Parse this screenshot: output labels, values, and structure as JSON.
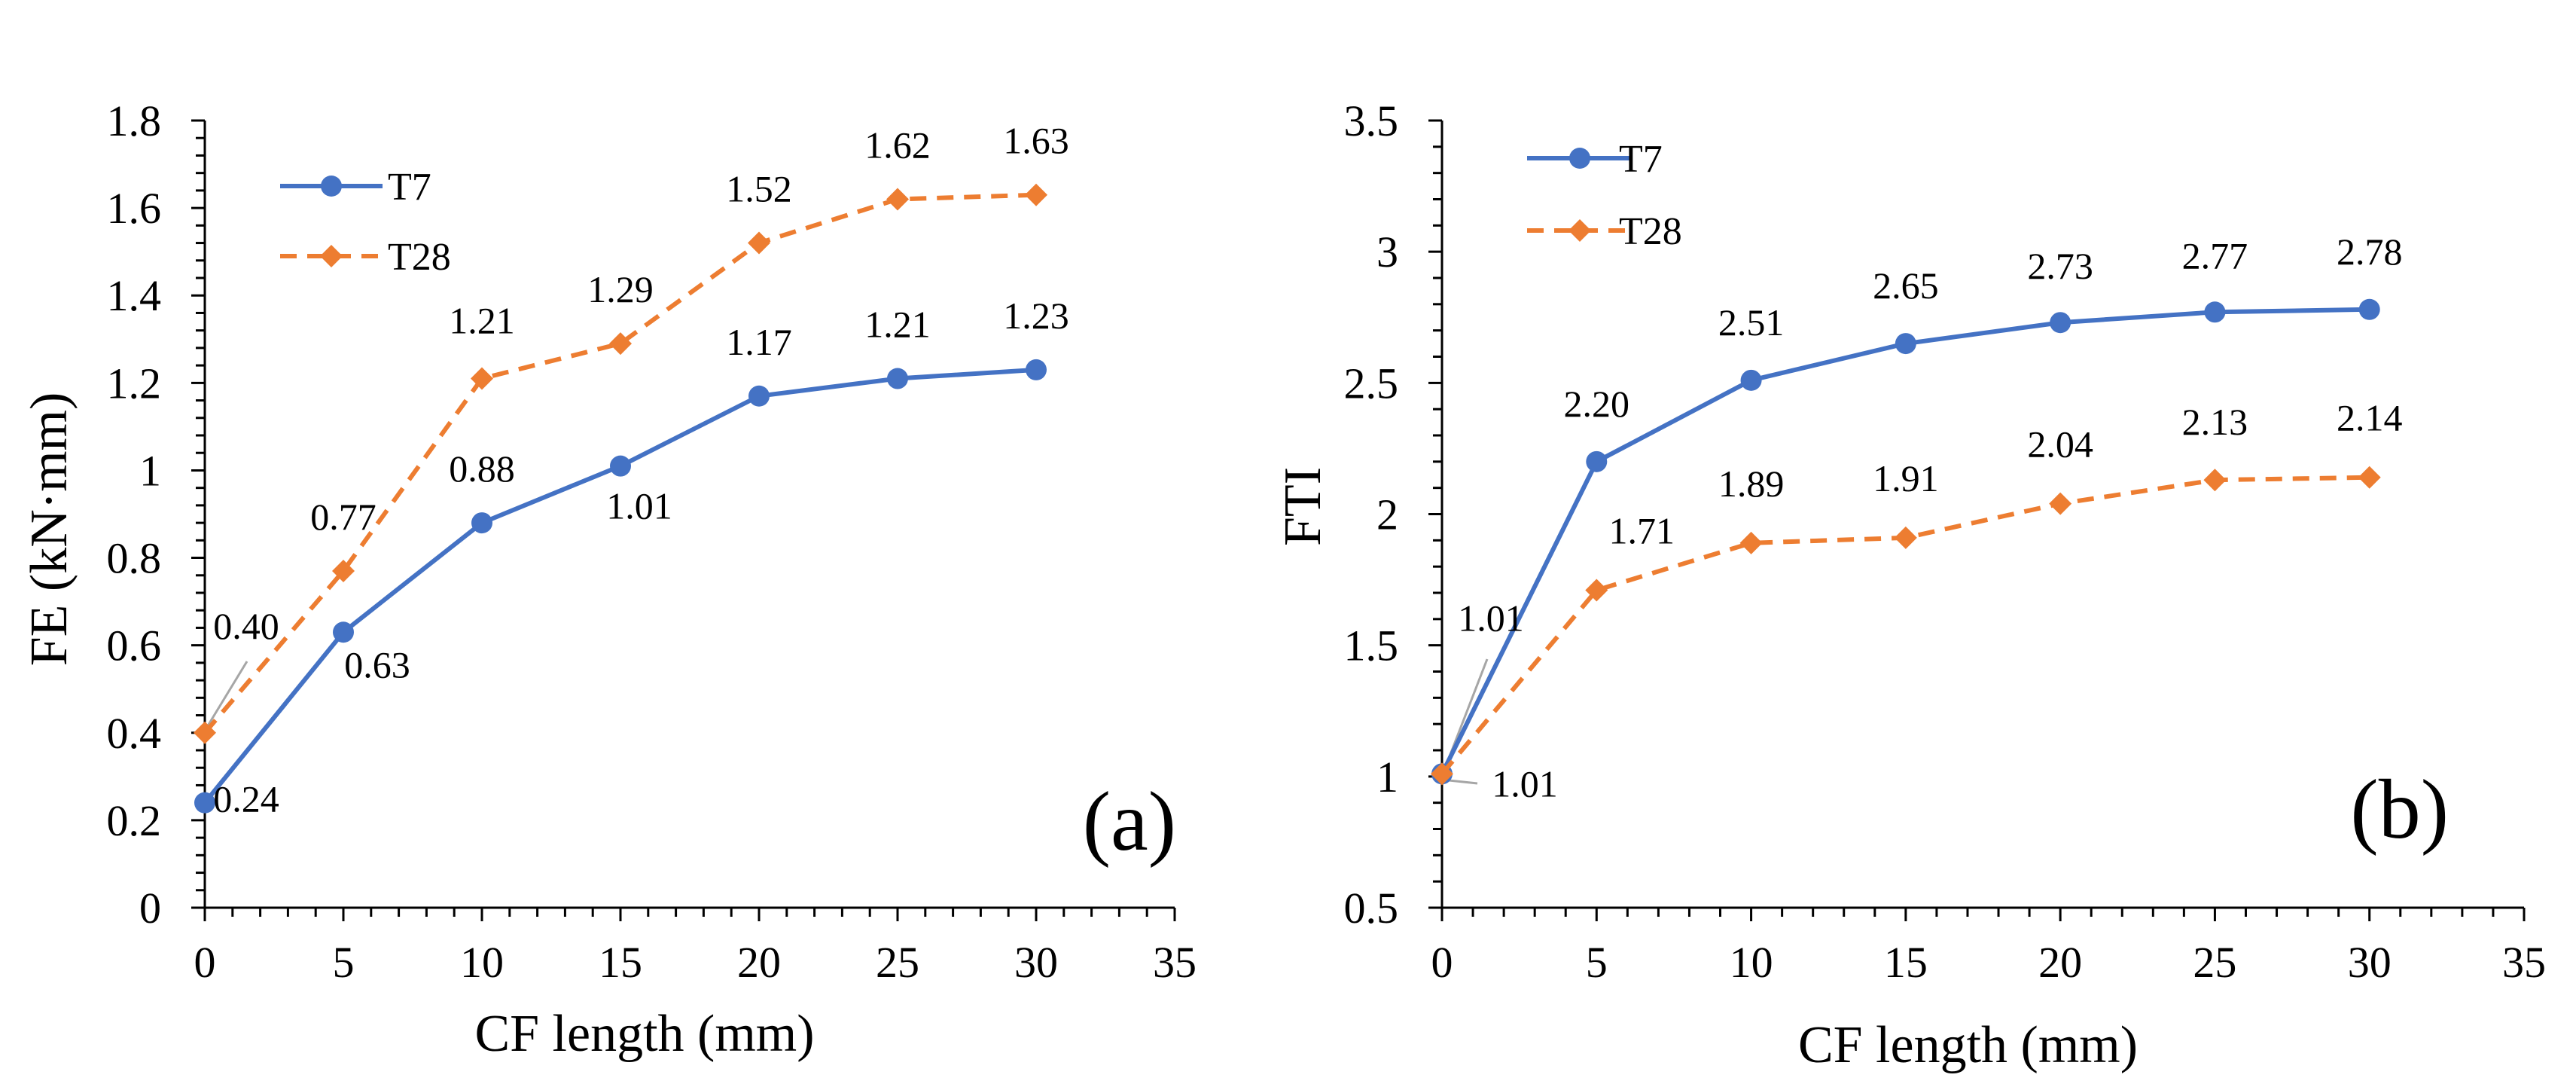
{
  "chart_data": [
    {
      "id": "a",
      "type": "line",
      "panel_label": "(a)",
      "title": "",
      "xlabel": "CF length (mm)",
      "ylabel": "FE (kN·mm)",
      "x": [
        0,
        5,
        10,
        15,
        20,
        25,
        30
      ],
      "xlim": [
        0,
        35
      ],
      "x_ticks": [
        "0",
        "5",
        "10",
        "15",
        "20",
        "25",
        "30",
        "35"
      ],
      "ylim": [
        0,
        1.8
      ],
      "y_ticks": [
        "0",
        "0.2",
        "0.4",
        "0.6",
        "0.8",
        "1",
        "1.2",
        "1.4",
        "1.6",
        "1.8"
      ],
      "grid": false,
      "legend_position": "top-left",
      "series": [
        {
          "name": "T7",
          "color": "#4472C4",
          "marker": "circle",
          "line_style": "solid",
          "values": [
            0.24,
            0.63,
            0.88,
            1.01,
            1.17,
            1.21,
            1.23
          ],
          "labels": [
            "0.24",
            "0.63",
            "0.88",
            "1.01",
            "1.17",
            "1.21",
            "1.23"
          ]
        },
        {
          "name": "T28",
          "color": "#ED7D31",
          "marker": "diamond",
          "line_style": "dashed",
          "values": [
            0.4,
            0.77,
            1.21,
            1.29,
            1.52,
            1.62,
            1.63
          ],
          "labels": [
            "0.40",
            "0.77",
            "1.21",
            "1.29",
            "1.52",
            "1.62",
            "1.63"
          ]
        }
      ]
    },
    {
      "id": "b",
      "type": "line",
      "panel_label": "(b)",
      "title": "",
      "xlabel": "CF length (mm)",
      "ylabel": "FTI",
      "x": [
        0,
        5,
        10,
        15,
        20,
        25,
        30
      ],
      "xlim": [
        0,
        35
      ],
      "x_ticks": [
        "0",
        "5",
        "10",
        "15",
        "20",
        "25",
        "30",
        "35"
      ],
      "ylim": [
        0.5,
        3.5
      ],
      "y_ticks": [
        "0.5",
        "1",
        "1.5",
        "2",
        "2.5",
        "3",
        "3.5"
      ],
      "grid": false,
      "legend_position": "top-left",
      "series": [
        {
          "name": "T7",
          "color": "#4472C4",
          "marker": "circle",
          "line_style": "solid",
          "values": [
            1.01,
            2.2,
            2.51,
            2.65,
            2.73,
            2.77,
            2.78
          ],
          "labels": [
            "1.01",
            "2.20",
            "2.51",
            "2.65",
            "2.73",
            "2.77",
            "2.78"
          ]
        },
        {
          "name": "T28",
          "color": "#ED7D31",
          "marker": "diamond",
          "line_style": "dashed",
          "values": [
            1.01,
            1.71,
            1.89,
            1.91,
            2.04,
            2.13,
            2.14
          ],
          "labels": [
            "1.01",
            "1.71",
            "1.89",
            "1.91",
            "2.04",
            "2.13",
            "2.14"
          ]
        }
      ]
    }
  ]
}
